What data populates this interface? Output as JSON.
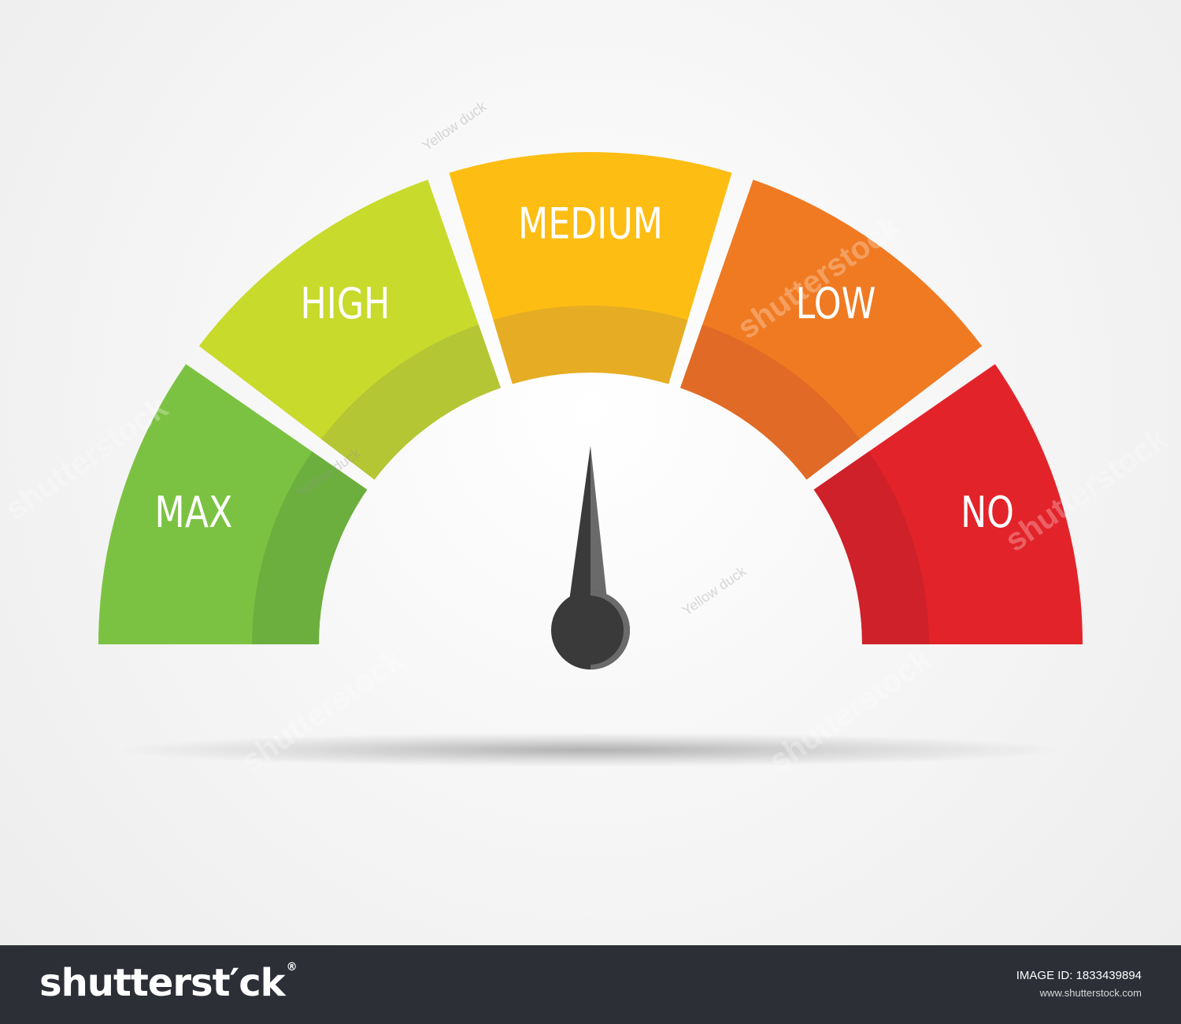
{
  "gauge": {
    "segments": [
      {
        "label": "MAX",
        "color": "#7cc242",
        "inner_color": "#6daf3f"
      },
      {
        "label": "HIGH",
        "color": "#c8da2b",
        "inner_color": "#b4c634"
      },
      {
        "label": "MEDIUM",
        "color": "#fdbd13",
        "inner_color": "#e6ad24"
      },
      {
        "label": "LOW",
        "color": "#f07a22",
        "inner_color": "#e06a26"
      },
      {
        "label": "NO",
        "color": "#e3232a",
        "inner_color": "#cf2129"
      }
    ],
    "needle_segment_index": 2,
    "needle_level": 0.5,
    "needle_color": "#3a3a3a",
    "needle_highlight_color": "#6a6a6a"
  },
  "watermark": {
    "brand_text": "shutterstock",
    "contributor_text": "Yellow duck"
  },
  "footer": {
    "brand": "shutterst′ck",
    "image_id_label": "IMAGE ID: 1833439894",
    "site": "www.shutterstock.com"
  }
}
